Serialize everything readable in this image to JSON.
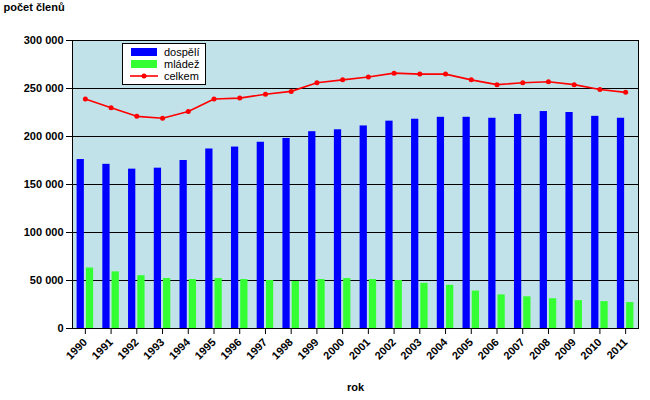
{
  "chart_data": {
    "type": "bar",
    "x_label": "rok",
    "y_label": "počet členů",
    "categories": [
      "1990",
      "1991",
      "1992",
      "1993",
      "1994",
      "1995",
      "1996",
      "1997",
      "1998",
      "1999",
      "2000",
      "2001",
      "2002",
      "2003",
      "2004",
      "2005",
      "2006",
      "2007",
      "2008",
      "2009",
      "2010",
      "2011"
    ],
    "series": [
      {
        "name": "dospělí",
        "color": "#0000ff",
        "values": [
          176000,
          171000,
          166000,
          167000,
          175000,
          187000,
          189000,
          194000,
          198000,
          205000,
          207000,
          211000,
          216000,
          218000,
          220000,
          220000,
          219000,
          223000,
          226000,
          225000,
          221000,
          219000
        ]
      },
      {
        "name": "mládež",
        "color": "#33ff33",
        "values": [
          63000,
          59000,
          55000,
          52000,
          51000,
          52000,
          51000,
          50000,
          49000,
          51000,
          52000,
          51000,
          50000,
          47000,
          45000,
          39000,
          35000,
          33000,
          31000,
          29000,
          28000,
          27000
        ]
      },
      {
        "name": "celkem",
        "type": "line",
        "color": "#ff0000",
        "marker": "circle",
        "values": [
          239000,
          230000,
          221000,
          219000,
          226000,
          239000,
          240000,
          244000,
          247000,
          256000,
          259000,
          262000,
          266000,
          265000,
          265000,
          259000,
          254000,
          256000,
          257000,
          254000,
          249000,
          246000
        ]
      }
    ],
    "ylim": [
      0,
      300000
    ],
    "yticks": [
      0,
      {
        "value": 50000,
        "label": "50 000"
      },
      {
        "value": 100000,
        "label": "100 000"
      },
      {
        "value": 150000,
        "label": "150 000"
      },
      {
        "value": 200000,
        "label": "200 000"
      },
      {
        "value": 250000,
        "label": "250 000"
      },
      {
        "value": 300000,
        "label": "300 000"
      }
    ],
    "grid": true,
    "legend": "top-left"
  }
}
